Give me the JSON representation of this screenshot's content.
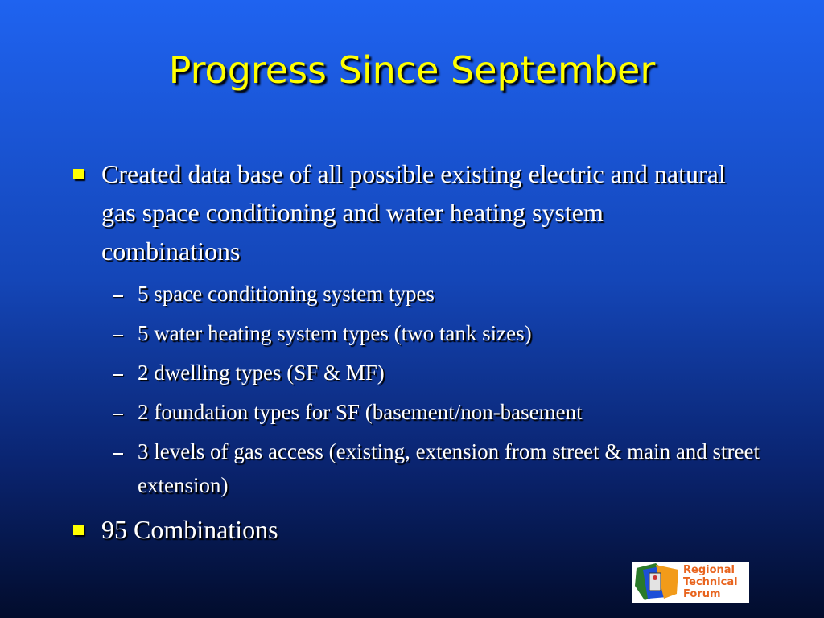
{
  "title": "Progress Since September",
  "bullets": [
    {
      "text": "Created data base of all possible existing electric and natural gas space conditioning and water heating system combinations",
      "subitems": [
        "5 space conditioning system types",
        "5 water heating system types (two tank sizes)",
        "2 dwelling types (SF & MF)",
        "2 foundation types for SF (basement/non-basement",
        "3 levels of gas access (existing, extension from street & main and street extension)"
      ]
    },
    {
      "text": "95 Combinations"
    }
  ],
  "logo": {
    "lines": [
      "Regional",
      "Technical",
      "Forum"
    ]
  }
}
